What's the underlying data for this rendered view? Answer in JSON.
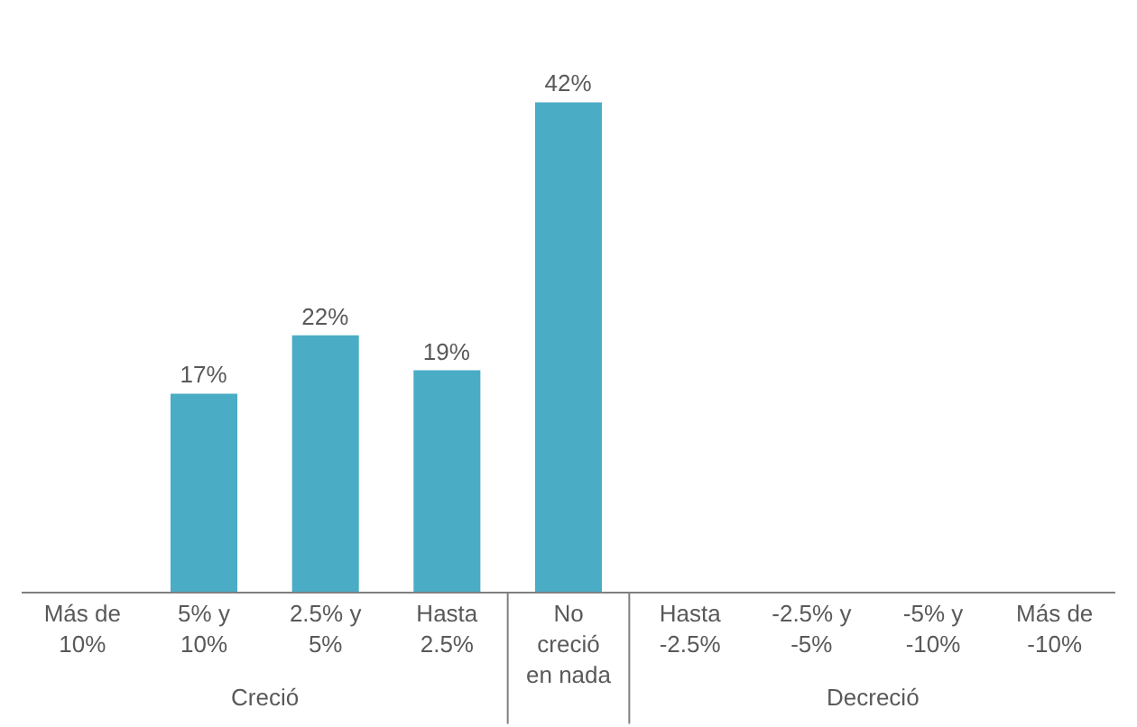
{
  "chart_data": {
    "type": "bar",
    "categories": [
      "Más de\n10%",
      "5% y\n10%",
      "2.5% y\n5%",
      "Hasta\n2.5%",
      "No\ncreció\nen nada",
      "Hasta\n-2.5%",
      "-2.5% y\n-5%",
      "-5% y\n-10%",
      "Más de\n-10%"
    ],
    "values": [
      0,
      17,
      22,
      19,
      42,
      0,
      0,
      0,
      0
    ],
    "value_labels": [
      null,
      "17%",
      "22%",
      "19%",
      "42%",
      null,
      null,
      null,
      null
    ],
    "color": "#4bacc6",
    "legend": false,
    "annotations": [
      "Creció",
      "Decreció"
    ]
  }
}
